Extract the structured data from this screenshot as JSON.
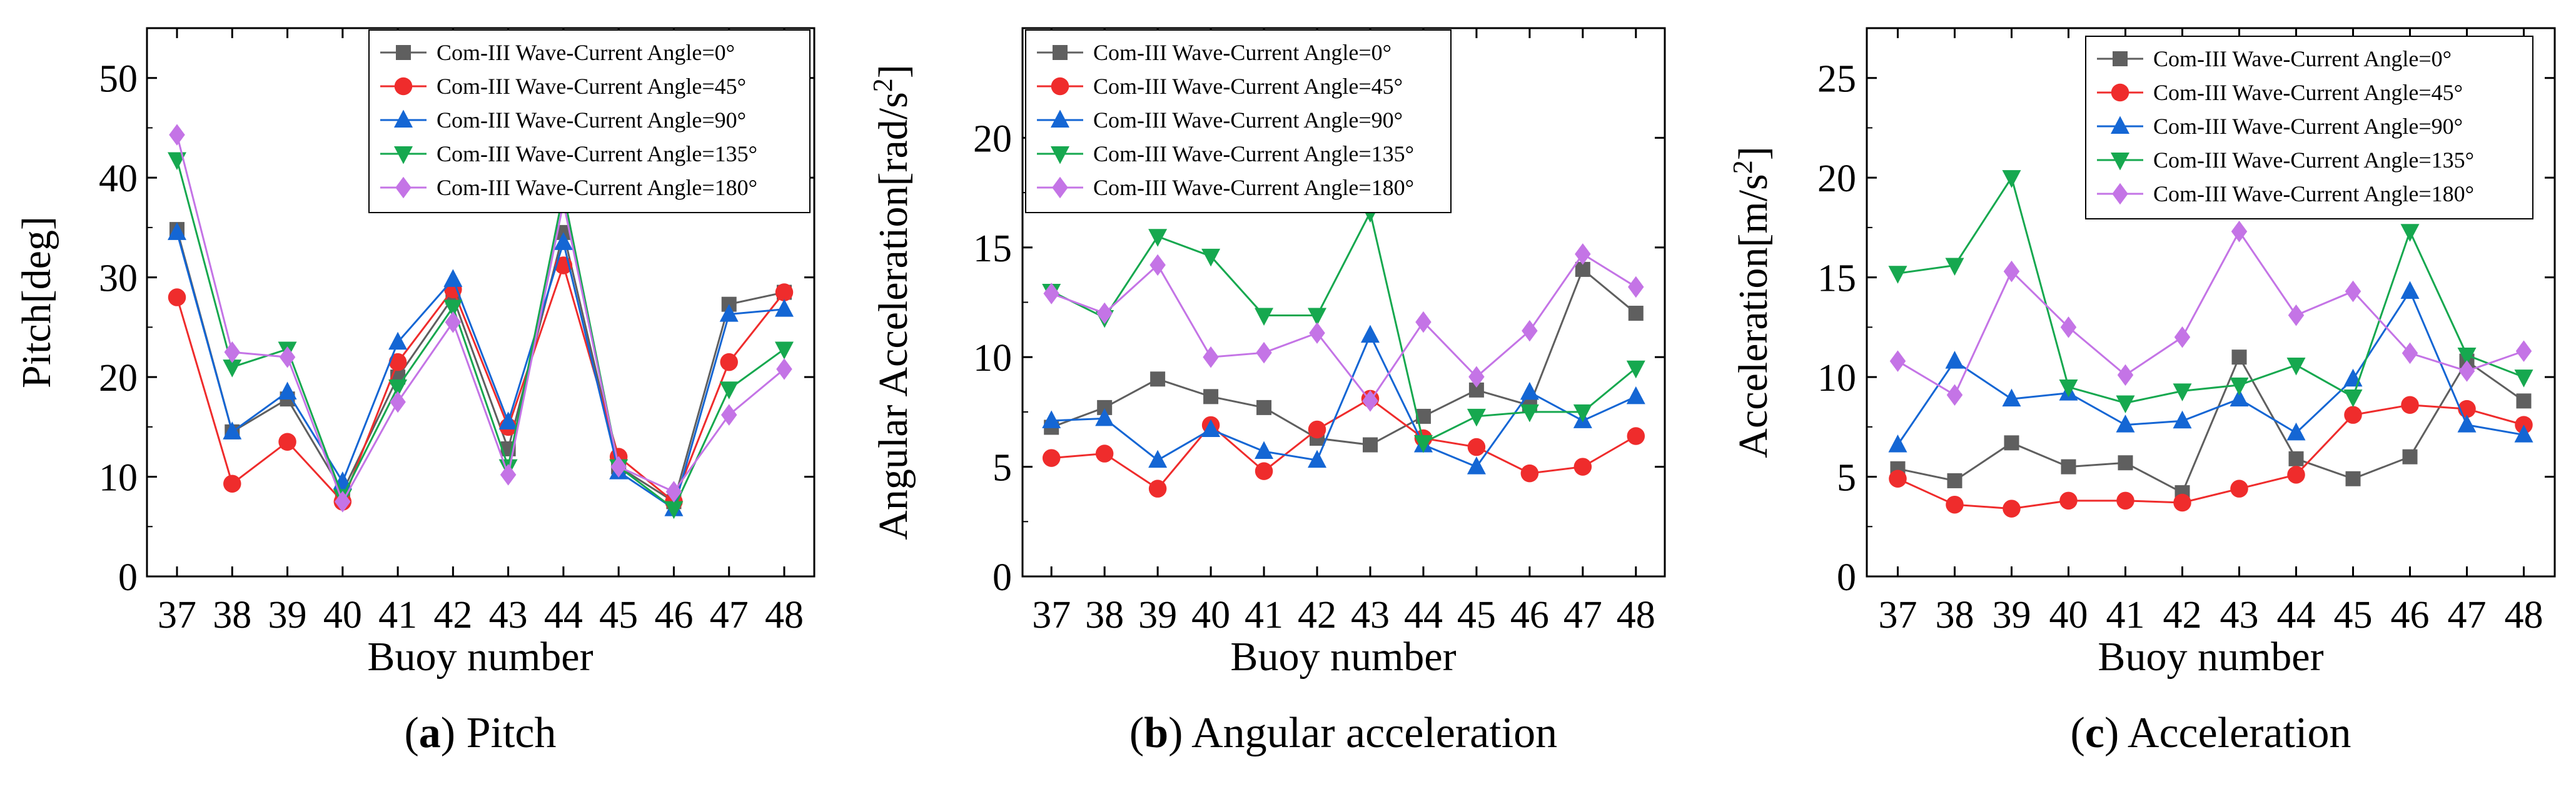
{
  "figure": {
    "colors": {
      "Com-III Wave-Current Angle=0°": "#5f5f5f",
      "Com-III Wave-Current Angle=45°": "#ef2c2c",
      "Com-III Wave-Current Angle=90°": "#1466d4",
      "Com-III Wave-Current Angle=135°": "#16a84f",
      "Com-III Wave-Current Angle=180°": "#c474e6"
    },
    "markers": {
      "Com-III Wave-Current Angle=0°": "square",
      "Com-III Wave-Current Angle=45°": "circle",
      "Com-III Wave-Current Angle=90°": "triangle-up",
      "Com-III Wave-Current Angle=135°": "triangle-down",
      "Com-III Wave-Current Angle=180°": "diamond"
    }
  },
  "chart_data": [
    {
      "id": "a",
      "type": "line",
      "caption_letter": "a",
      "caption_text": "Pitch",
      "title": "",
      "xlabel": "Buoy number",
      "ylabel": "Pitch[deg]",
      "ylabel_sup": "",
      "ylabel_end": "",
      "ylim": [
        0,
        55
      ],
      "yticks": [
        0,
        10,
        20,
        30,
        40,
        50
      ],
      "categories": [
        "37",
        "38",
        "39",
        "40",
        "41",
        "42",
        "43",
        "44",
        "45",
        "46",
        "47",
        "48"
      ],
      "legend_position": "top-right",
      "series": [
        {
          "name": "Com-III Wave-Current Angle=0°",
          "values": [
            34.8,
            14.5,
            17.8,
            8.5,
            20.0,
            28.0,
            12.8,
            34.5,
            11.0,
            7.5,
            27.3,
            28.5
          ]
        },
        {
          "name": "Com-III Wave-Current Angle=45°",
          "values": [
            28.0,
            9.3,
            13.5,
            7.5,
            21.5,
            28.8,
            15.0,
            31.2,
            12.0,
            7.5,
            21.5,
            28.5
          ]
        },
        {
          "name": "Com-III Wave-Current Angle=90°",
          "values": [
            34.5,
            14.5,
            18.5,
            9.5,
            23.5,
            29.8,
            15.5,
            33.5,
            10.5,
            6.8,
            26.3,
            26.8
          ]
        },
        {
          "name": "Com-III Wave-Current Angle=135°",
          "values": [
            41.8,
            21.0,
            22.8,
            8.0,
            19.0,
            27.0,
            11.0,
            38.5,
            11.0,
            6.8,
            18.8,
            22.8
          ]
        },
        {
          "name": "Com-III Wave-Current Angle=180°",
          "values": [
            44.3,
            22.5,
            22.0,
            7.5,
            17.5,
            25.5,
            10.2,
            37.5,
            11.0,
            8.5,
            16.2,
            20.8
          ]
        }
      ]
    },
    {
      "id": "b",
      "type": "line",
      "caption_letter": "b",
      "caption_text": "Angular acceleration",
      "title": "",
      "xlabel": "Buoy number",
      "ylabel": "Angular Acceleration[rad/s",
      "ylabel_sup": "2",
      "ylabel_end": "]",
      "ylim": [
        0,
        25
      ],
      "yticks": [
        0,
        5,
        10,
        15,
        20
      ],
      "categories": [
        "37",
        "38",
        "39",
        "40",
        "41",
        "42",
        "43",
        "44",
        "45",
        "46",
        "47",
        "48"
      ],
      "legend_position": "top-right",
      "series": [
        {
          "name": "Com-III Wave-Current Angle=0°",
          "values": [
            6.8,
            7.7,
            9.0,
            8.2,
            7.7,
            6.3,
            6.0,
            7.3,
            8.5,
            7.8,
            14.0,
            12.0
          ]
        },
        {
          "name": "Com-III Wave-Current Angle=45°",
          "values": [
            5.4,
            5.6,
            4.0,
            6.9,
            4.8,
            6.7,
            8.1,
            6.3,
            5.9,
            4.7,
            5.0,
            6.4
          ]
        },
        {
          "name": "Com-III Wave-Current Angle=90°",
          "values": [
            7.1,
            7.2,
            5.3,
            6.7,
            5.7,
            5.3,
            11.0,
            6.0,
            5.0,
            8.4,
            7.1,
            8.2
          ]
        },
        {
          "name": "Com-III Wave-Current Angle=135°",
          "values": [
            13.0,
            11.8,
            15.5,
            14.6,
            11.9,
            11.9,
            16.6,
            6.1,
            7.3,
            7.5,
            7.5,
            9.5
          ]
        },
        {
          "name": "Com-III Wave-Current Angle=180°",
          "values": [
            12.9,
            12.0,
            14.2,
            10.0,
            10.2,
            11.1,
            8.0,
            11.6,
            9.1,
            11.2,
            14.7,
            13.2
          ]
        }
      ]
    },
    {
      "id": "c",
      "type": "line",
      "caption_letter": "c",
      "caption_text": "Acceleration",
      "title": "",
      "xlabel": "Buoy number",
      "ylabel": "Acceleration[m/s",
      "ylabel_sup": "2",
      "ylabel_end": "]",
      "ylim": [
        0,
        27.5
      ],
      "yticks": [
        0,
        5,
        10,
        15,
        20,
        25
      ],
      "categories": [
        "37",
        "38",
        "39",
        "40",
        "41",
        "42",
        "43",
        "44",
        "45",
        "46",
        "47",
        "48"
      ],
      "legend_position": "top-right",
      "series": [
        {
          "name": "Com-III Wave-Current Angle=0°",
          "values": [
            5.4,
            4.8,
            6.7,
            5.5,
            5.7,
            4.2,
            11.0,
            5.9,
            4.9,
            6.0,
            10.8,
            8.8
          ]
        },
        {
          "name": "Com-III Wave-Current Angle=45°",
          "values": [
            4.9,
            3.6,
            3.4,
            3.8,
            3.8,
            3.7,
            4.4,
            5.1,
            8.1,
            8.6,
            8.4,
            7.6
          ]
        },
        {
          "name": "Com-III Wave-Current Angle=90°",
          "values": [
            6.6,
            10.8,
            8.9,
            9.2,
            7.6,
            7.8,
            8.9,
            7.2,
            9.9,
            14.3,
            7.6,
            7.1
          ]
        },
        {
          "name": "Com-III Wave-Current Angle=135°",
          "values": [
            15.2,
            15.6,
            20.0,
            9.5,
            8.7,
            9.3,
            9.6,
            10.6,
            9.0,
            17.3,
            11.1,
            10.0
          ]
        },
        {
          "name": "Com-III Wave-Current Angle=180°",
          "values": [
            10.8,
            9.1,
            15.3,
            12.5,
            10.1,
            12.0,
            17.3,
            13.1,
            14.3,
            11.2,
            10.3,
            11.3
          ]
        }
      ]
    }
  ]
}
